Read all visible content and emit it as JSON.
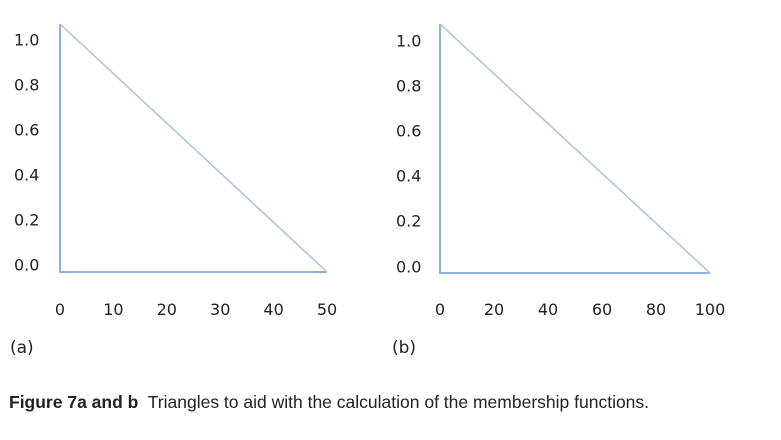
{
  "chart_data": [
    {
      "type": "line",
      "panel_label": "(a)",
      "x": [
        0,
        0,
        50
      ],
      "y": [
        1.0,
        0.0,
        0.0
      ],
      "closed": true,
      "extra_segment": {
        "x": [
          0,
          50
        ],
        "y": [
          1.0,
          0.0
        ]
      },
      "x_ticks": [
        "0",
        "10",
        "20",
        "30",
        "40",
        "50"
      ],
      "x_tick_values": [
        0,
        10,
        20,
        30,
        40,
        50
      ],
      "y_ticks": [
        "1.0",
        "0.8",
        "0.6",
        "0.4",
        "0.2",
        "0.0"
      ],
      "y_tick_values": [
        1.0,
        0.8,
        0.6,
        0.4,
        0.2,
        0.0
      ],
      "xlim": [
        0,
        50
      ],
      "ylim": [
        0,
        1.0
      ],
      "grid": false,
      "line_color": "#a9c1e0",
      "axis_color": "#8fb0d9"
    },
    {
      "type": "line",
      "panel_label": "(b)",
      "x": [
        0,
        0,
        100
      ],
      "y": [
        1.0,
        0.0,
        0.0
      ],
      "closed": true,
      "extra_segment": {
        "x": [
          0,
          100
        ],
        "y": [
          1.0,
          0.0
        ]
      },
      "x_ticks": [
        "0",
        "20",
        "40",
        "60",
        "80",
        "100"
      ],
      "x_tick_values": [
        0,
        20,
        40,
        60,
        80,
        100
      ],
      "y_ticks": [
        "1.0",
        "0.8",
        "0.6",
        "0.4",
        "0.2",
        "0.0"
      ],
      "y_tick_values": [
        1.0,
        0.8,
        0.6,
        0.4,
        0.2,
        0.0
      ],
      "xlim": [
        0,
        100
      ],
      "ylim": [
        0,
        1.0
      ],
      "grid": false,
      "line_color": "#a9c1e0",
      "axis_color": "#8fb0d9"
    }
  ],
  "caption": {
    "label": "Figure 7a and b",
    "text": "Triangles to aid with the calculation of the membership functions."
  }
}
